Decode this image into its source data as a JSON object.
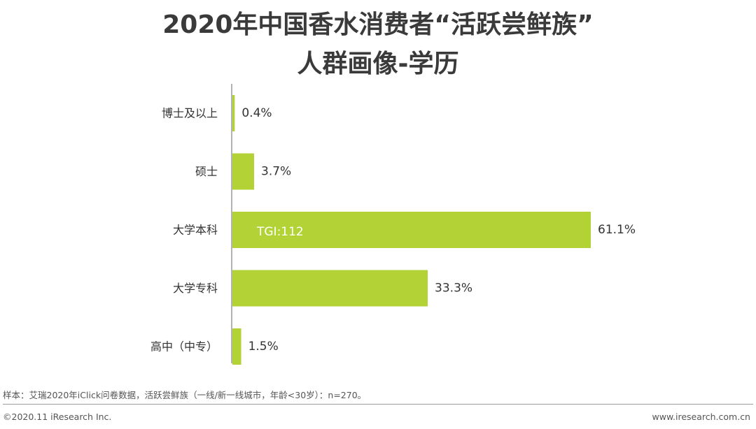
{
  "title_line1": "2020年中国香水消费者“活跃尝鲜族”",
  "title_line2": "人群画像-学历",
  "chart_data": {
    "type": "bar",
    "orientation": "horizontal",
    "categories": [
      "博士及以上",
      "硕士",
      "大学本科",
      "大学专科",
      "高中（中专）"
    ],
    "values": [
      0.4,
      3.7,
      61.1,
      33.3,
      1.5
    ],
    "value_labels": [
      "0.4%",
      "3.7%",
      "61.1%",
      "33.3%",
      "1.5%"
    ],
    "annotations": [
      {
        "category": "大学本科",
        "text": "TGI:112"
      }
    ],
    "unit": "%",
    "bar_color": "#b2d235",
    "xlim": [
      0,
      61.1
    ],
    "grid": false,
    "legend": "none"
  },
  "footnote": "样本：艾瑞2020年iClick问卷数据，活跃尝鲜族（一线/新一线城市，年龄<30岁）：n=270。",
  "copyright": "©2020.11 iResearch Inc.",
  "website": "www.iresearch.com.cn"
}
